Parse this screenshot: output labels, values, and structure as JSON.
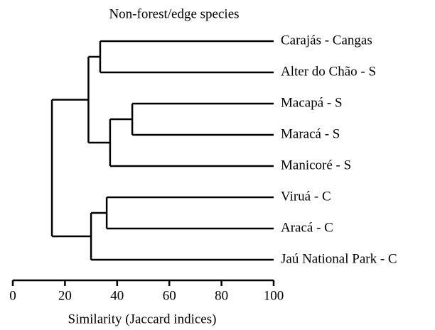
{
  "chart_data": {
    "type": "dendrogram",
    "title": "Non-forest/edge species",
    "xlabel": "Similarity (Jaccard indices)",
    "xlim": [
      0,
      100
    ],
    "xticks": [
      0,
      20,
      40,
      60,
      80,
      100
    ],
    "color": "#000000",
    "tree": {
      "value": 15,
      "children": [
        {
          "value": 29,
          "children": [
            {
              "value": 33.5,
              "children": [
                {
                  "name": "Carajás - Cangas"
                },
                {
                  "name": "Alter do Chão - S"
                }
              ]
            },
            {
              "value": 37.3,
              "children": [
                {
                  "value": 45.8,
                  "children": [
                    {
                      "name": "Macapá - S"
                    },
                    {
                      "name": "Maracá - S"
                    }
                  ]
                },
                {
                  "name": "Manicoré - S"
                }
              ]
            }
          ]
        },
        {
          "value": 30,
          "children": [
            {
              "value": 36,
              "children": [
                {
                  "name": "Viruá - C"
                },
                {
                  "name": "Aracá - C"
                }
              ]
            },
            {
              "name": "Jaú National Park - C"
            }
          ]
        }
      ]
    }
  }
}
